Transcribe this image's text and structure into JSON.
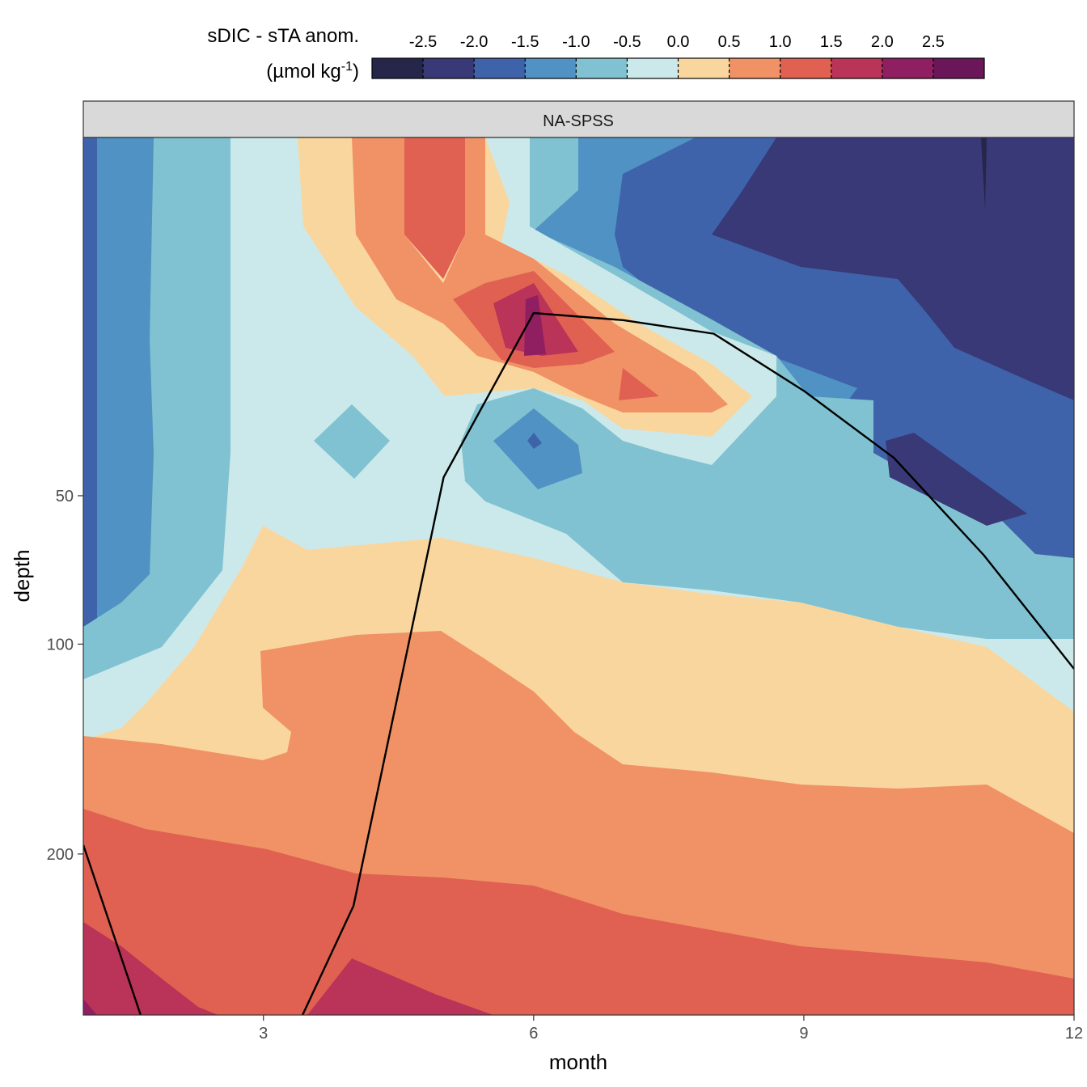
{
  "legend": {
    "title_line1": "sDIC - sTA anom.",
    "title_line2_prefix": "(µmol kg",
    "title_line2_sup": "-1",
    "title_line2_suffix": ")",
    "tick_labels": [
      "-2.5",
      "-2.0",
      "-1.5",
      "-1.0",
      "-0.5",
      "0.0",
      "0.5",
      "1.0",
      "1.5",
      "2.0",
      "2.5"
    ],
    "colors": [
      "#25264a",
      "#383976",
      "#3f63aa",
      "#4f92c3",
      "#80c2d1",
      "#cbe9ea",
      "#fad69f",
      "#f09265",
      "#e06151",
      "#ba3358",
      "#901f61",
      "#6b1659"
    ]
  },
  "colors": {
    "panel_border": "#333333",
    "strip_fill": "#d9d9d9",
    "axis_text": "#4d4d4d",
    "line": "#000000"
  },
  "facet": {
    "label": "NA-SPSS"
  },
  "axes": {
    "xlabel": "month",
    "ylabel": "depth",
    "x_ticks": [
      "3",
      "6",
      "9",
      "12"
    ],
    "y_ticks": [
      "50",
      "100",
      "200"
    ]
  },
  "chart_data": {
    "type": "heatmap",
    "subtype": "filled contour",
    "title": "",
    "facet": "NA-SPSS",
    "xlabel": "month",
    "ylabel": "depth",
    "xlim": [
      1,
      12
    ],
    "ylim": [
      0,
      300
    ],
    "y_reversed": true,
    "y_scale": "sqrt",
    "x_ticks": [
      3,
      6,
      9,
      12
    ],
    "y_ticks": [
      50,
      100,
      200
    ],
    "legend": {
      "title": "sDIC - sTA anom. (µmol kg-1)",
      "breaks": [
        -2.5,
        -2.0,
        -1.5,
        -1.0,
        -0.5,
        0.0,
        0.5,
        1.0,
        1.5,
        2.0,
        2.5
      ],
      "placement": "top"
    },
    "series": [
      {
        "label": "mixed layer depth line",
        "x": [
          1,
          2,
          3,
          4,
          5,
          6,
          7,
          8,
          9,
          10,
          11,
          12
        ],
        "y": [
          195,
          370,
          360,
          230,
          45,
          12,
          13,
          15,
          25,
          40,
          68,
          110
        ]
      }
    ],
    "grid": false
  }
}
